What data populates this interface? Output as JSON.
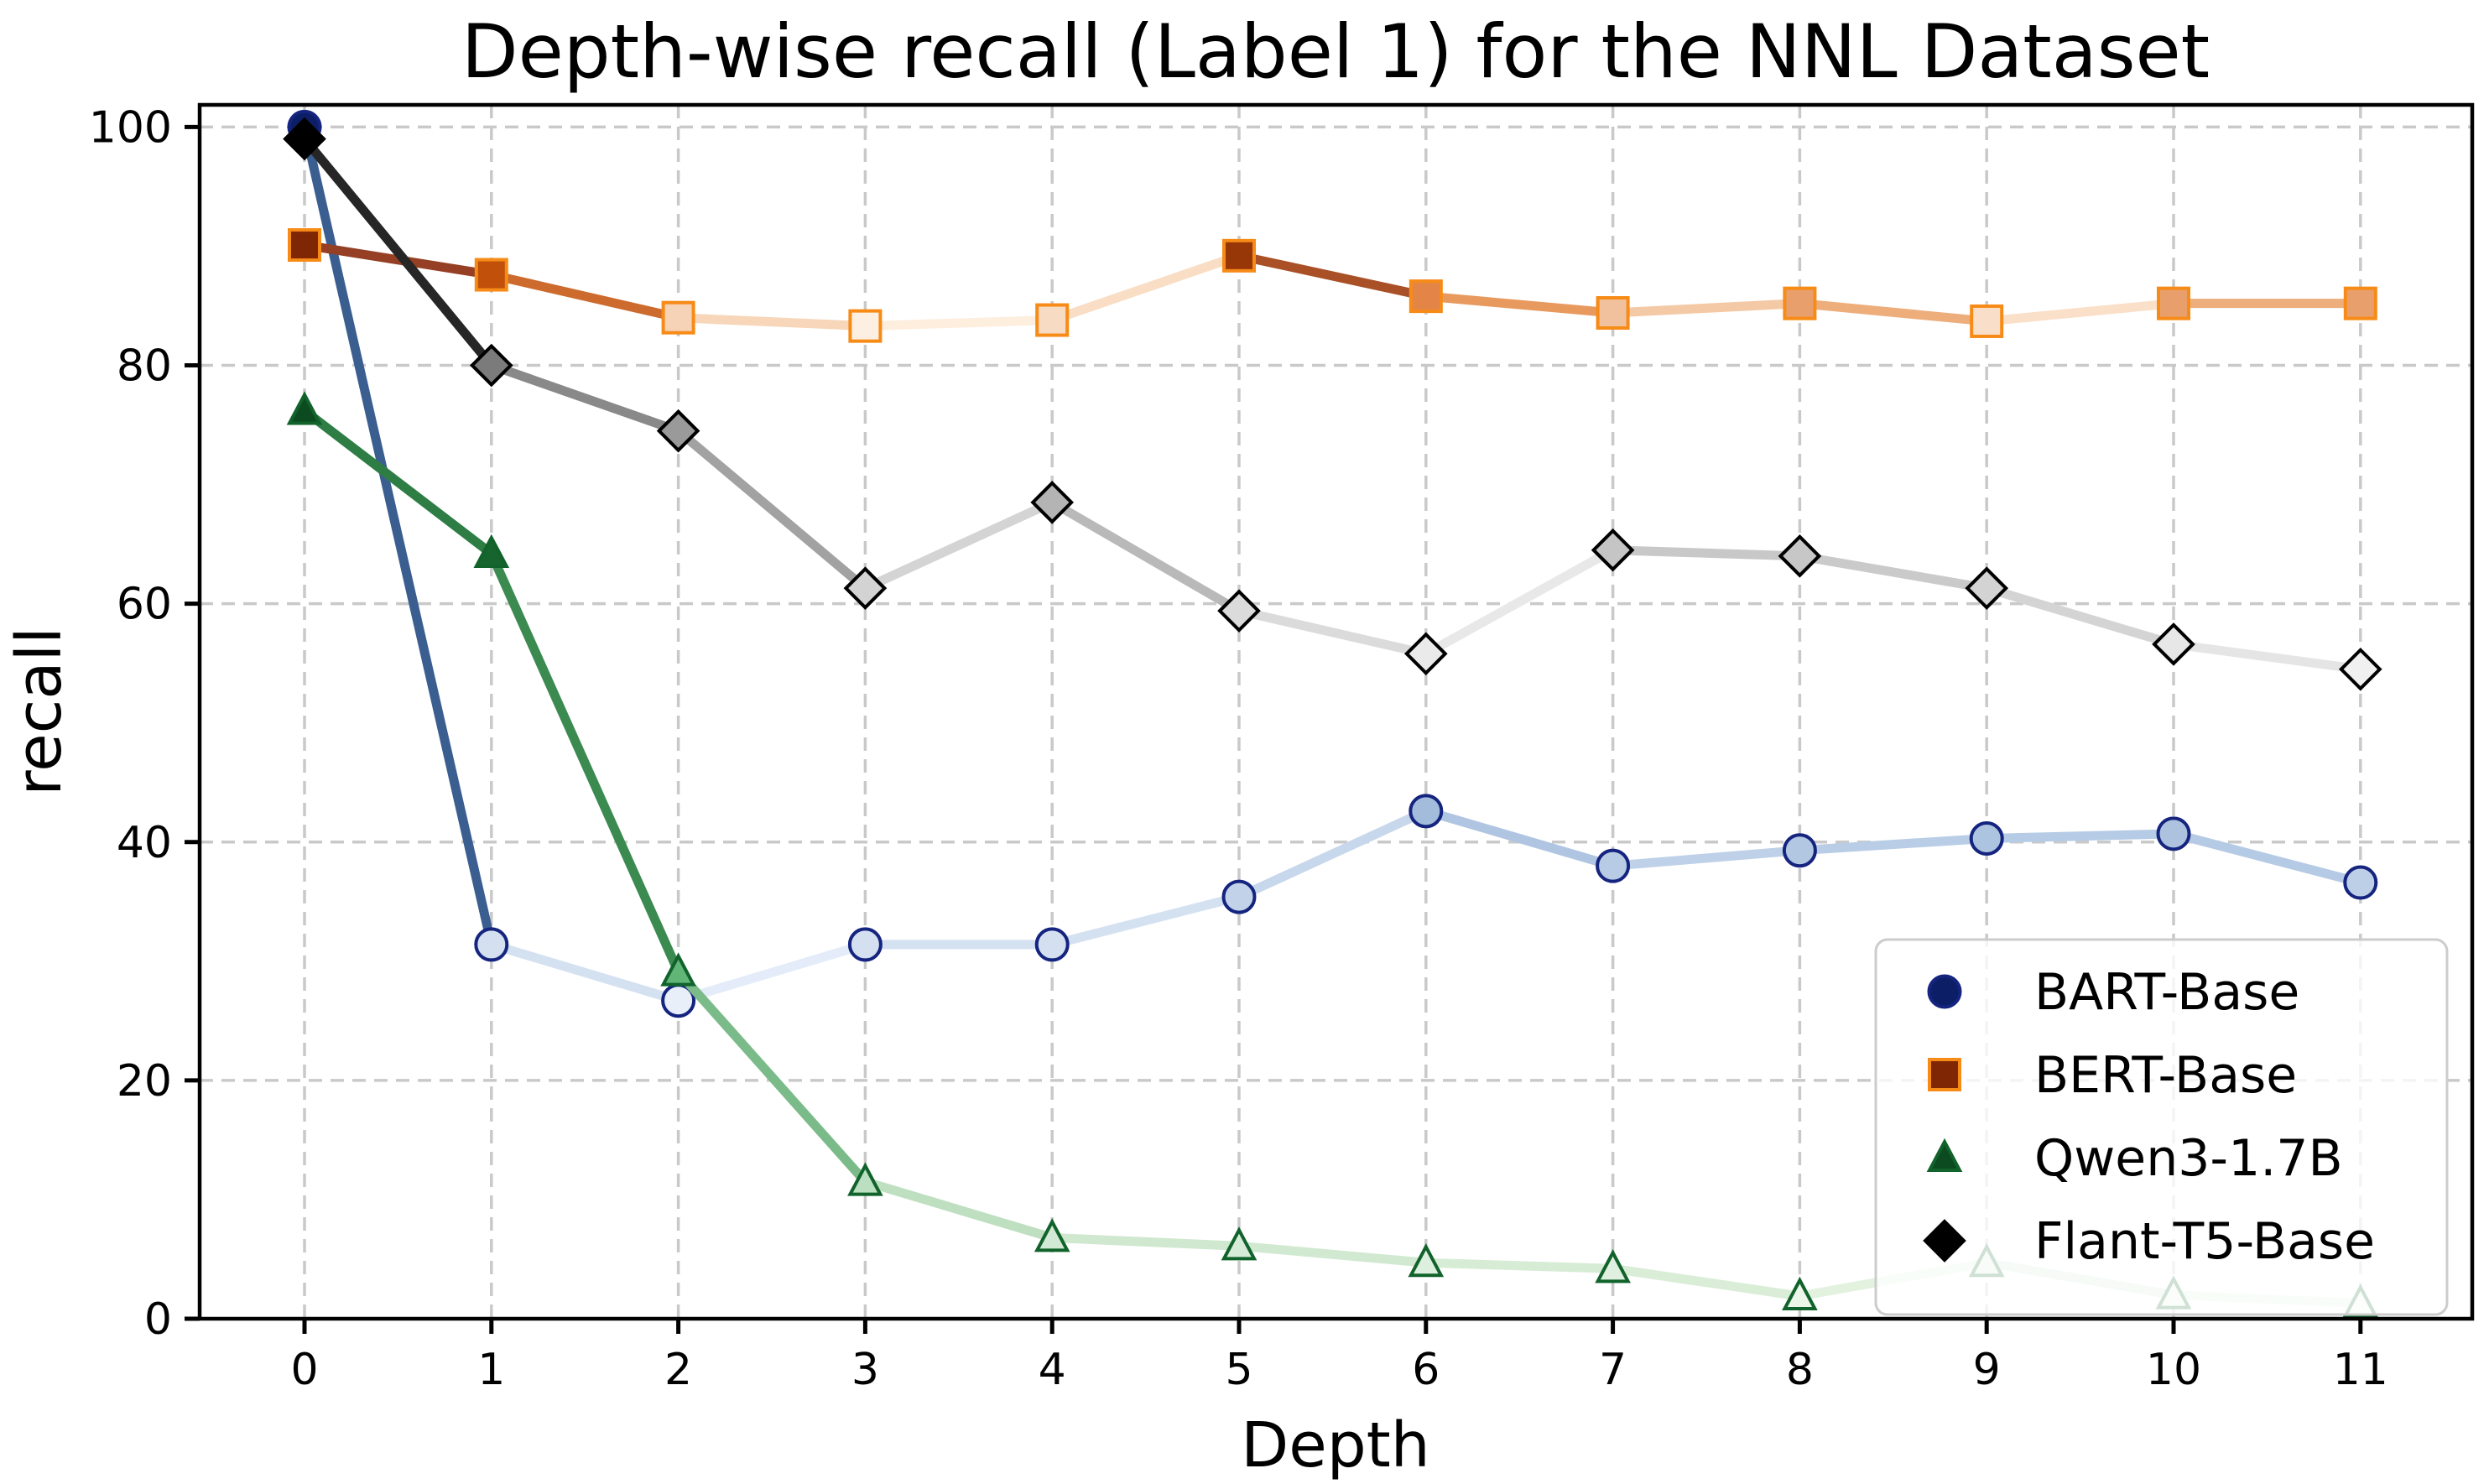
{
  "title": "Depth-wise recall (Label 1) for the NNL Dataset",
  "chart_data": {
    "type": "line",
    "title": "Depth-wise recall (Label 1) for the NNL Dataset",
    "xlabel": "Depth",
    "ylabel": "recall",
    "x": [
      0,
      1,
      2,
      3,
      4,
      5,
      6,
      7,
      8,
      9,
      10,
      11
    ],
    "x_tick_labels": [
      "0",
      "1",
      "2",
      "3",
      "4",
      "5",
      "6",
      "7",
      "8",
      "9",
      "10",
      "11"
    ],
    "y_tick_values": [
      0,
      20,
      40,
      60,
      80,
      100
    ],
    "y_tick_labels": [
      "0",
      "20",
      "40",
      "60",
      "80",
      "100"
    ],
    "xlim": [
      -0.56,
      11.6
    ],
    "ylim": [
      0,
      101.8
    ],
    "grid": true,
    "grid_style": "dashed",
    "colors": {
      "background": "#ffffff",
      "grid": "#c9c9c9",
      "axis": "#000000",
      "legend_border": "#cccccc",
      "legend_face": "rgba(255,255,255,0.8)"
    },
    "color_rule": "line and marker fill fade from dark (series max value) to near-white (series min value); marker edges stay solid",
    "legend_position": "lower right",
    "series": [
      {
        "name": "BART-Base",
        "marker": "circle",
        "values": [
          100.0,
          31.4,
          26.7,
          31.4,
          31.4,
          35.4,
          42.6,
          38.0,
          39.3,
          40.3,
          40.7,
          36.6
        ],
        "edge_color": "#15247f",
        "marker_ramp": [
          "#e8eff9",
          "#4a7ab5",
          "#0c1f66"
        ],
        "line_ramp": [
          "#e3ecf8",
          "#6b93c4",
          "#3b5e90"
        ]
      },
      {
        "name": "BERT-Base",
        "marker": "square",
        "values": [
          90.1,
          87.6,
          84.0,
          83.3,
          83.8,
          89.2,
          85.8,
          84.4,
          85.2,
          83.7,
          85.2,
          85.2
        ],
        "edge_color": "#f78b17",
        "marker_ramp": [
          "#fdf0e2",
          "#d95f0e",
          "#7f2704"
        ],
        "line_ramp": [
          "#fdeedd",
          "#e07b30",
          "#954024"
        ]
      },
      {
        "name": "Qwen3-1.7B",
        "marker": "triangle",
        "values": [
          76.2,
          64.2,
          29.1,
          11.5,
          6.8,
          6.1,
          4.7,
          4.2,
          1.9,
          4.7,
          2.0,
          1.3
        ],
        "edge_color": "#11632b",
        "marker_ramp": [
          "#eef7ec",
          "#2f9e4f",
          "#0c4a1f"
        ],
        "line_ramp": [
          "#e4f3e0",
          "#57a86b",
          "#2e7d45"
        ]
      },
      {
        "name": "Flant-T5-Base",
        "marker": "diamond",
        "values": [
          99.0,
          80.0,
          74.5,
          61.3,
          68.5,
          59.4,
          55.8,
          64.5,
          64.0,
          61.3,
          56.6,
          54.5
        ],
        "edge_color": "#000000",
        "marker_ramp": [
          "#f0f0f0",
          "#909090",
          "#000000"
        ],
        "line_ramp": [
          "#ededed",
          "#9a9a9a",
          "#262626"
        ]
      }
    ]
  }
}
